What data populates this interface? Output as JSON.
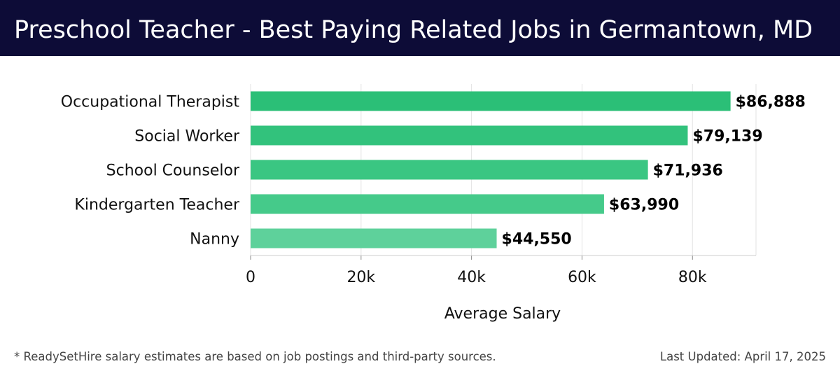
{
  "header": {
    "title": "Preschool Teacher - Best Paying Related Jobs in Germantown, MD"
  },
  "chart_data": {
    "type": "bar",
    "orientation": "horizontal",
    "title": "Preschool Teacher - Best Paying Related Jobs in Germantown, MD",
    "categories": [
      "Occupational Therapist",
      "Social Worker",
      "School Counselor",
      "Kindergarten Teacher",
      "Nanny"
    ],
    "values": [
      86888,
      79139,
      71936,
      63990,
      44550
    ],
    "value_labels": [
      "$86,888",
      "$79,139",
      "$71,936",
      "$63,990",
      "$44,550"
    ],
    "xlabel": "Average Salary",
    "ylabel": "",
    "xlim": [
      0,
      91500
    ],
    "x_ticks": [
      0,
      20000,
      40000,
      60000,
      80000
    ],
    "x_tick_labels": [
      "0",
      "20k",
      "40k",
      "60k",
      "80k"
    ],
    "grid": true,
    "bar_colors": [
      "#2bbf77",
      "#32c27c",
      "#3ac682",
      "#45ca8a",
      "#5ed19b"
    ]
  },
  "footer": {
    "note": "* ReadySetHire salary estimates are based on job postings and third-party sources.",
    "updated": "Last Updated: April 17, 2025"
  }
}
